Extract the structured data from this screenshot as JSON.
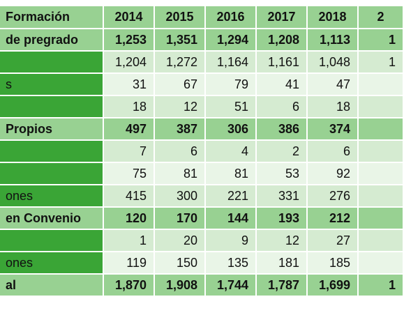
{
  "header": {
    "label": "Formación",
    "years": [
      "2014",
      "2015",
      "2016",
      "2017",
      "2018",
      "2"
    ]
  },
  "rows": [
    {
      "type": "subtotal",
      "label": "de pregrado",
      "values": [
        "1,253",
        "1,351",
        "1,294",
        "1,208",
        "1,113",
        "1"
      ]
    },
    {
      "type": "detail",
      "label": "",
      "values": [
        "1,204",
        "1,272",
        "1,164",
        "1,161",
        "1,048",
        "1"
      ]
    },
    {
      "type": "detail",
      "label": "s",
      "values": [
        "31",
        "67",
        "79",
        "41",
        "47",
        ""
      ]
    },
    {
      "type": "detail",
      "label": "",
      "values": [
        "18",
        "12",
        "51",
        "6",
        "18",
        ""
      ]
    },
    {
      "type": "subtotal",
      "label": "Propios",
      "values": [
        "497",
        "387",
        "306",
        "386",
        "374",
        ""
      ]
    },
    {
      "type": "detail",
      "label": "",
      "values": [
        "7",
        "6",
        "4",
        "2",
        "6",
        ""
      ]
    },
    {
      "type": "detail",
      "label": "",
      "values": [
        "75",
        "81",
        "81",
        "53",
        "92",
        ""
      ]
    },
    {
      "type": "detail",
      "label": "ones",
      "values": [
        "415",
        "300",
        "221",
        "331",
        "276",
        ""
      ]
    },
    {
      "type": "subtotal",
      "label": "en Convenio",
      "values": [
        "120",
        "170",
        "144",
        "193",
        "212",
        ""
      ]
    },
    {
      "type": "detail",
      "label": "",
      "values": [
        "1",
        "20",
        "9",
        "12",
        "27",
        ""
      ]
    },
    {
      "type": "detail",
      "label": "ones",
      "values": [
        "119",
        "150",
        "135",
        "181",
        "185",
        ""
      ]
    },
    {
      "type": "total",
      "label": "al",
      "values": [
        "1,870",
        "1,908",
        "1,744",
        "1,787",
        "1,699",
        "1"
      ]
    }
  ],
  "footnote": "",
  "colors": {
    "header_bg": "#98d192",
    "detail_label_bg": "#3aa536",
    "detail_bg": "#d5ebd1",
    "detail_bg_alt": "#e9f5e7"
  }
}
